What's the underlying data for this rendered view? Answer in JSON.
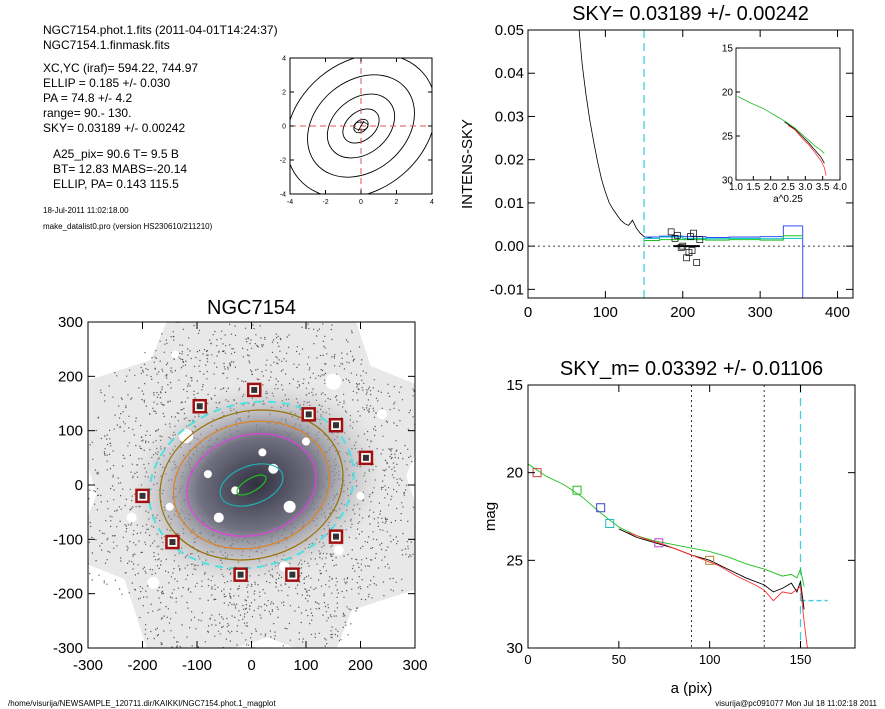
{
  "header": {
    "line1": "NGC7154.phot.1.fits  (2011-04-01T14:24:37)",
    "line2": "NGC7154.1.finmask.fits",
    "xc_yc": "XC,YC (iraf)=   594.22, 744.97",
    "ellip": "ELLIP = 0.185 +/- 0.030",
    "pa": "PA    = 74.8 +/-   4.2",
    "range": "range=   90.-  130.",
    "sky": "SKY= 0.03189 +/- 0.00242",
    "a25": "A25_pix= 90.6   T= 9.5  B",
    "bt": "BT=  12.83   MABS=-20.14",
    "ellip_pa": "ELLIP, PA= 0.143   115.5",
    "date": "18-Jul-2011 11:02:18.00",
    "program": "make_datalist0.pro (version HS230610/211210)"
  },
  "footer": {
    "left": "/home/visurija/NEWSAMPLE_120711.dir/KAIKKI/NGC7154.phot.1_magplot",
    "right": "visurija@pc091077  Mon Jul 18 11:02:18 2011"
  },
  "chart_data": [
    {
      "type": "contour",
      "x_ticks": [
        "-4",
        "-2",
        "0",
        "2",
        "4"
      ],
      "y_ticks": [
        "4",
        "2",
        "0",
        "-2",
        "-4"
      ],
      "xlim": [
        -4,
        4
      ],
      "ylim": [
        -4,
        4
      ],
      "contours": [
        {
          "semi_a": 0.45,
          "semi_b": 0.32
        },
        {
          "semi_a": 1.15,
          "semi_b": 0.8
        },
        {
          "semi_a": 2.1,
          "semi_b": 1.55
        },
        {
          "semi_a": 3.3,
          "semi_b": 2.55
        },
        {
          "semi_a": 4.6,
          "semi_b": 3.6
        }
      ]
    },
    {
      "type": "line",
      "title": "SKY= 0.03189 +/- 0.00242",
      "ylabel": "INTENS-SKY",
      "xlim": [
        0,
        420
      ],
      "ylim": [
        -0.012,
        0.05
      ],
      "x_ticks": [
        "0",
        "100",
        "200",
        "300",
        "400"
      ],
      "y_ticks": [
        "0.05",
        "0.04",
        "0.03",
        "0.02",
        "0.01",
        "0.00",
        "-0.01"
      ],
      "x_tick_values": [
        0,
        100,
        200,
        300,
        400
      ],
      "y_tick_values": [
        0.05,
        0.04,
        0.03,
        0.02,
        0.01,
        0.0,
        -0.01
      ],
      "sky_radius": 150,
      "edge_radius": 355,
      "profile": {
        "x": [
          66,
          70,
          75,
          80,
          85,
          90,
          95,
          100,
          105,
          110,
          115,
          120,
          125,
          130,
          135,
          140,
          145,
          150,
          155,
          160
        ],
        "y": [
          0.05,
          0.042,
          0.035,
          0.029,
          0.024,
          0.0195,
          0.0155,
          0.0125,
          0.01,
          0.0085,
          0.0072,
          0.006,
          0.0052,
          0.0048,
          0.006,
          0.0042,
          0.003,
          0.0022,
          0.002,
          0.0019
        ]
      },
      "steps": [
        {
          "name": "",
          "color": "#3050ff",
          "x": [
            150,
            170,
            200,
            230,
            260,
            300,
            330,
            355
          ],
          "y": [
            0.0021,
            0.0023,
            0.0022,
            0.002,
            0.0021,
            0.0022,
            0.0047,
            0.0047
          ]
        },
        {
          "name": "",
          "color": "#00c0c0",
          "x": [
            150,
            170,
            200,
            230,
            260,
            300,
            330,
            355
          ],
          "y": [
            0.0018,
            0.0021,
            0.0018,
            0.0017,
            0.0018,
            0.0017,
            0.0018,
            0.0018
          ]
        },
        {
          "name": "",
          "color": "#20c020",
          "x": [
            150,
            170,
            200,
            230,
            260,
            300,
            330,
            355
          ],
          "y": [
            0.0013,
            0.0015,
            0.0015,
            0.0014,
            0.0015,
            0.0014,
            0.0024,
            0.0024
          ]
        }
      ],
      "squares": {
        "x": [
          185,
          193,
          200,
          208,
          214,
          222,
          198,
          205,
          212,
          190,
          218,
          210
        ],
        "y": [
          0.0033,
          0.0025,
          0.0,
          -0.0015,
          0.003,
          0.0015,
          -0.0003,
          -0.0027,
          -0.001,
          0.0018,
          -0.0038,
          0.0022
        ]
      },
      "inset": {
        "xlabel": "a^0.25",
        "xlim": [
          1.0,
          4.0
        ],
        "ylim": [
          30,
          15
        ],
        "x_ticks": [
          "1.0",
          "1.5",
          "2.0",
          "2.5",
          "3.0",
          "3.5",
          "4.0"
        ],
        "y_ticks": [
          "15",
          "20",
          "25",
          "30"
        ],
        "x_tick_values": [
          1.0,
          1.5,
          2.0,
          2.5,
          3.0,
          3.5,
          4.0
        ],
        "y_tick_values": [
          15,
          20,
          25,
          30
        ],
        "series": [
          {
            "name": "",
            "color": "#20c020",
            "x": [
              1.05,
              1.4,
              1.8,
              2.1,
              2.4,
              2.7,
              2.9,
              3.1,
              3.3,
              3.45,
              3.55
            ],
            "y": [
              20.5,
              21.2,
              21.9,
              22.6,
              23.3,
              24.1,
              24.8,
              25.5,
              26.2,
              26.6,
              27.0
            ]
          },
          {
            "name": "",
            "color": "#000000",
            "x": [
              2.4,
              2.7,
              2.9,
              3.1,
              3.3,
              3.45,
              3.55
            ],
            "y": [
              23.4,
              24.2,
              25.0,
              25.8,
              26.7,
              27.4,
              28.1
            ]
          },
          {
            "name": "",
            "color": "#ff3030",
            "x": [
              2.5,
              2.7,
              2.9,
              3.1,
              3.3,
              3.45,
              3.55,
              3.6
            ],
            "y": [
              23.8,
              24.3,
              25.2,
              26.0,
              27.0,
              27.8,
              28.6,
              29.5
            ]
          }
        ]
      }
    },
    {
      "type": "image",
      "title": "NGC7154",
      "xlim": [
        -300,
        300
      ],
      "ylim": [
        -300,
        300
      ],
      "x_ticks": [
        "-300",
        "-200",
        "-100",
        "0",
        "100",
        "200",
        "300"
      ],
      "y_ticks": [
        "300",
        "200",
        "100",
        "0",
        "-100",
        "-200",
        "-300"
      ],
      "x_tick_values": [
        -300,
        -200,
        -100,
        0,
        100,
        200,
        300
      ],
      "y_tick_values": [
        300,
        200,
        100,
        0,
        -100,
        -200,
        -300
      ],
      "markers": {
        "x": [
          5,
          -95,
          105,
          155,
          210,
          -200,
          -145,
          155,
          -20,
          75
        ],
        "y": [
          175,
          145,
          130,
          110,
          50,
          -20,
          -105,
          -95,
          -165,
          -165
        ]
      },
      "ellipses": [
        {
          "name": "",
          "color": "#50e0e0",
          "a": 190,
          "b": 150,
          "pa": 15,
          "dash": true
        },
        {
          "name": "",
          "color": "#9a7000",
          "a": 170,
          "b": 135,
          "pa": 15,
          "dash": false
        },
        {
          "name": "",
          "color": "#e08020",
          "a": 145,
          "b": 115,
          "pa": 15,
          "dash": false
        },
        {
          "name": "",
          "color": "#e040e0",
          "a": 120,
          "b": 92,
          "pa": 15,
          "dash": false
        },
        {
          "name": "",
          "color": "#20b0b0",
          "a": 60,
          "b": 35,
          "pa": 20,
          "dash": false
        },
        {
          "name": "",
          "color": "#20c020",
          "a": 30,
          "b": 12,
          "pa": 30,
          "dash": false
        }
      ]
    },
    {
      "type": "line",
      "title": "SKY_m=  0.03392 +/- 0.01106",
      "xlabel": "a (pix)",
      "ylabel": "mag",
      "xlim": [
        0,
        180
      ],
      "ylim": [
        30,
        15
      ],
      "x_ticks": [
        "0",
        "50",
        "100",
        "150"
      ],
      "y_ticks": [
        "15",
        "20",
        "25",
        "30"
      ],
      "x_tick_values": [
        0,
        50,
        100,
        150
      ],
      "y_tick_values": [
        15,
        20,
        25,
        30
      ],
      "range_lines": [
        90,
        130
      ],
      "sky_radius": 150,
      "sky_mag": 27.3,
      "series": [
        {
          "name": "",
          "color": "#20c020",
          "x": [
            0,
            10,
            20,
            30,
            40,
            50,
            60,
            70,
            80,
            90,
            100,
            110,
            120,
            130,
            140,
            145,
            148,
            150,
            152
          ],
          "y": [
            19.5,
            20.2,
            20.7,
            21.4,
            22.3,
            23.1,
            23.6,
            23.9,
            24.1,
            24.3,
            24.5,
            24.8,
            25.2,
            25.5,
            25.9,
            25.8,
            26.0,
            25.5,
            26.5
          ]
        },
        {
          "name": "",
          "color": "#000000",
          "x": [
            50,
            60,
            70,
            80,
            90,
            100,
            110,
            120,
            130,
            135,
            140,
            145,
            148,
            150,
            152
          ],
          "y": [
            23.2,
            23.7,
            24.0,
            24.3,
            24.7,
            25.0,
            25.5,
            26.0,
            26.4,
            26.8,
            26.6,
            26.3,
            26.8,
            26.2,
            27.8
          ]
        },
        {
          "name": "",
          "color": "#ff3030",
          "x": [
            55,
            65,
            75,
            85,
            95,
            105,
            115,
            125,
            130,
            135,
            140,
            145,
            150,
            152,
            155
          ],
          "y": [
            23.4,
            23.8,
            24.1,
            24.5,
            24.9,
            25.3,
            25.9,
            26.4,
            26.7,
            27.3,
            26.8,
            26.9,
            26.5,
            28.5,
            31.0
          ]
        }
      ],
      "squares": [
        {
          "color": "#d04040",
          "x": 5,
          "y": 20.0
        },
        {
          "color": "#20c020",
          "x": 27,
          "y": 21.0
        },
        {
          "color": "#4040d0",
          "x": 40,
          "y": 22.0
        },
        {
          "color": "#20c0c0",
          "x": 45,
          "y": 22.9
        },
        {
          "color": "#c040c0",
          "x": 72,
          "y": 24.0
        },
        {
          "color": "#c08030",
          "x": 100,
          "y": 25.0
        }
      ]
    }
  ]
}
